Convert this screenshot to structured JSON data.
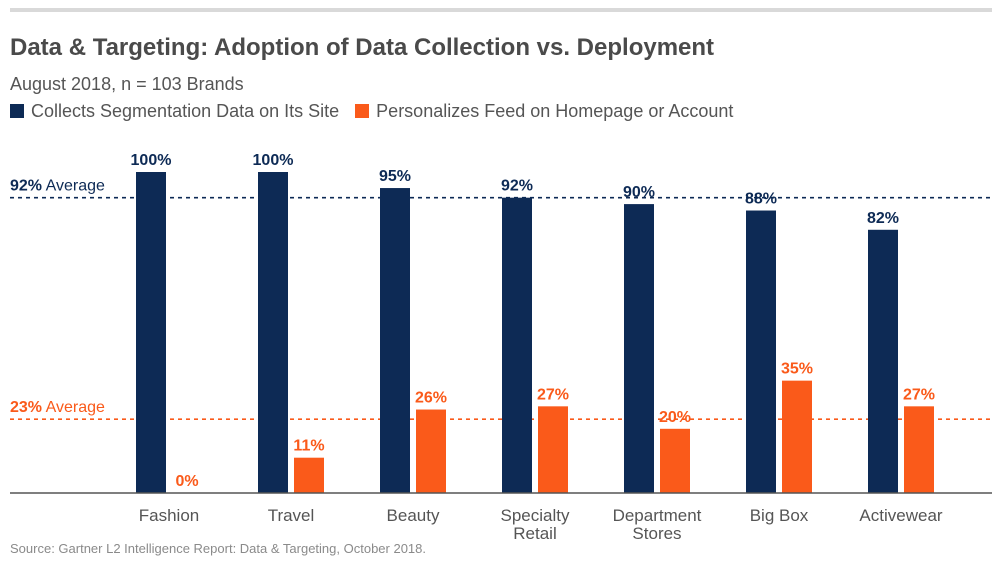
{
  "title": "Data & Targeting: Adoption of Data Collection vs. Deployment",
  "subtitle": "August 2018, n = 103 Brands",
  "source": "Source: Gartner L2 Intelligence Report: Data & Targeting, October 2018.",
  "colors": {
    "navy": "#0d2a55",
    "orange": "#fa5a1a",
    "axis": "#555555",
    "text": "#555555"
  },
  "chart_data": {
    "type": "bar",
    "categories": [
      [
        "Fashion"
      ],
      [
        "Travel"
      ],
      [
        "Beauty"
      ],
      [
        "Specialty",
        "Retail"
      ],
      [
        "Department",
        "Stores"
      ],
      [
        "Big Box"
      ],
      [
        "Activewear"
      ]
    ],
    "series": [
      {
        "name": "Collects Segmentation Data on Its Site",
        "color": "#0d2a55",
        "values": [
          100,
          100,
          95,
          92,
          90,
          88,
          82
        ],
        "labels": [
          "100%",
          "100%",
          "95%",
          "92%",
          "90%",
          "88%",
          "82%"
        ]
      },
      {
        "name": "Personalizes Feed on Homepage or Account",
        "color": "#fa5a1a",
        "values": [
          0,
          11,
          26,
          27,
          20,
          35,
          27
        ],
        "labels": [
          "0%",
          "11%",
          "26%",
          "27%",
          "20%",
          "35%",
          "27%"
        ]
      }
    ],
    "reference_lines": [
      {
        "value": 92,
        "pct": "92%",
        "label": "Average",
        "color": "#0d2a55"
      },
      {
        "value": 23,
        "pct": "23%",
        "label": "Average",
        "color": "#fa5a1a"
      }
    ],
    "ylim": [
      0,
      100
    ],
    "grid": false,
    "legend_position": "top-left"
  }
}
